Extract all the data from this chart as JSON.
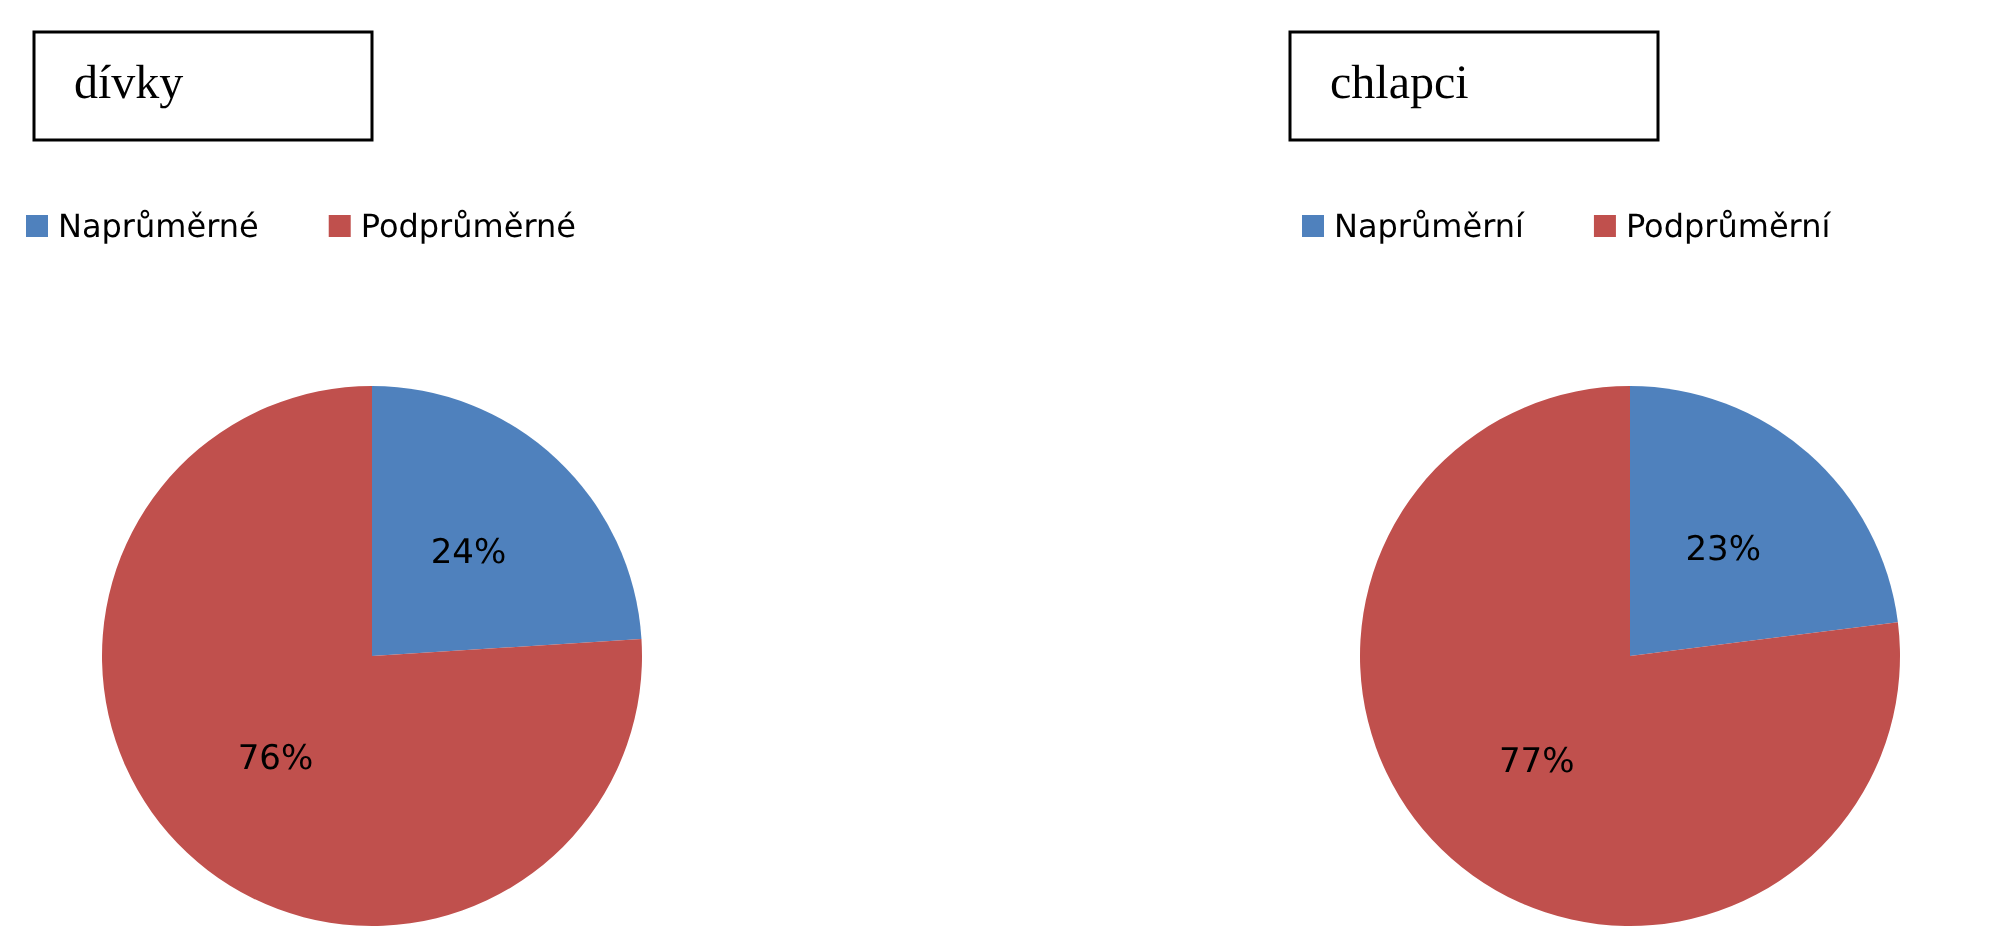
{
  "chart_data": [
    {
      "type": "pie",
      "title": "dívky",
      "categories": [
        "Naprůměrné",
        "Podprůměrné"
      ],
      "values": [
        24,
        76
      ],
      "colors": [
        "#4f81bd",
        "#c0504d"
      ],
      "value_labels": [
        "24%",
        "76%"
      ],
      "legend": "top left"
    },
    {
      "type": "pie",
      "title": "chlapci",
      "categories": [
        "Naprůměrní",
        "Podprůměrní"
      ],
      "values": [
        23,
        77
      ],
      "colors": [
        "#4f81bd",
        "#c0504d"
      ],
      "value_labels": [
        "23%",
        "77%"
      ],
      "legend": "top left"
    }
  ]
}
